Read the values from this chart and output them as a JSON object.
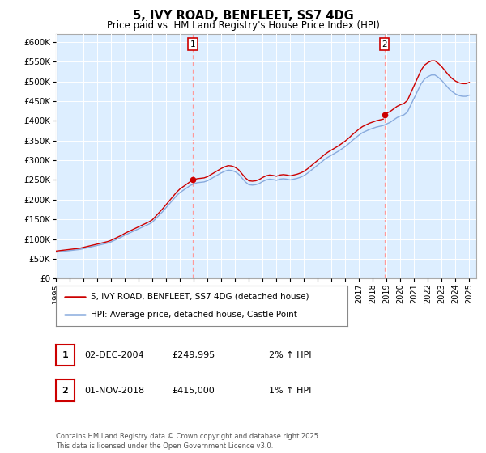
{
  "title": "5, IVY ROAD, BENFLEET, SS7 4DG",
  "subtitle": "Price paid vs. HM Land Registry's House Price Index (HPI)",
  "legend_line1": "5, IVY ROAD, BENFLEET, SS7 4DG (detached house)",
  "legend_line2": "HPI: Average price, detached house, Castle Point",
  "footer": "Contains HM Land Registry data © Crown copyright and database right 2025.\nThis data is licensed under the Open Government Licence v3.0.",
  "marker1_date": "02-DEC-2004",
  "marker1_price": "£249,995",
  "marker1_hpi": "2% ↑ HPI",
  "marker2_date": "01-NOV-2018",
  "marker2_price": "£415,000",
  "marker2_hpi": "1% ↑ HPI",
  "ylim": [
    0,
    620000
  ],
  "yticks": [
    0,
    50000,
    100000,
    150000,
    200000,
    250000,
    300000,
    350000,
    400000,
    450000,
    500000,
    550000,
    600000
  ],
  "red_line_color": "#cc0000",
  "blue_line_color": "#88aadd",
  "vline_color": "#ff9999",
  "background_color": "#ffffff",
  "plot_bg_color": "#ddeeff",
  "grid_color": "#ffffff",
  "marker1_x_year": 2004.92,
  "marker2_x_year": 2018.83,
  "hpi_years": [
    1995.0,
    1995.25,
    1995.5,
    1995.75,
    1996.0,
    1996.25,
    1996.5,
    1996.75,
    1997.0,
    1997.25,
    1997.5,
    1997.75,
    1998.0,
    1998.25,
    1998.5,
    1998.75,
    1999.0,
    1999.25,
    1999.5,
    1999.75,
    2000.0,
    2000.25,
    2000.5,
    2000.75,
    2001.0,
    2001.25,
    2001.5,
    2001.75,
    2002.0,
    2002.25,
    2002.5,
    2002.75,
    2003.0,
    2003.25,
    2003.5,
    2003.75,
    2004.0,
    2004.25,
    2004.5,
    2004.75,
    2005.0,
    2005.25,
    2005.5,
    2005.75,
    2006.0,
    2006.25,
    2006.5,
    2006.75,
    2007.0,
    2007.25,
    2007.5,
    2007.75,
    2008.0,
    2008.25,
    2008.5,
    2008.75,
    2009.0,
    2009.25,
    2009.5,
    2009.75,
    2010.0,
    2010.25,
    2010.5,
    2010.75,
    2011.0,
    2011.25,
    2011.5,
    2011.75,
    2012.0,
    2012.25,
    2012.5,
    2012.75,
    2013.0,
    2013.25,
    2013.5,
    2013.75,
    2014.0,
    2014.25,
    2014.5,
    2014.75,
    2015.0,
    2015.25,
    2015.5,
    2015.75,
    2016.0,
    2016.25,
    2016.5,
    2016.75,
    2017.0,
    2017.25,
    2017.5,
    2017.75,
    2018.0,
    2018.25,
    2018.5,
    2018.75,
    2019.0,
    2019.25,
    2019.5,
    2019.75,
    2020.0,
    2020.25,
    2020.5,
    2020.75,
    2021.0,
    2021.25,
    2021.5,
    2021.75,
    2022.0,
    2022.25,
    2022.5,
    2022.75,
    2023.0,
    2023.25,
    2023.5,
    2023.75,
    2024.0,
    2024.25,
    2024.5,
    2024.75,
    2025.0
  ],
  "hpi_values": [
    67000,
    68000,
    69000,
    70000,
    71000,
    72000,
    73000,
    74000,
    76000,
    78000,
    80000,
    82000,
    84000,
    86000,
    88000,
    90000,
    93000,
    97000,
    101000,
    105000,
    110000,
    114000,
    118000,
    122000,
    126000,
    130000,
    134000,
    138000,
    143000,
    152000,
    161000,
    170000,
    180000,
    190000,
    200000,
    210000,
    218000,
    224000,
    230000,
    236000,
    240000,
    243000,
    244000,
    245000,
    248000,
    253000,
    258000,
    263000,
    268000,
    272000,
    275000,
    274000,
    271000,
    265000,
    255000,
    245000,
    238000,
    237000,
    238000,
    241000,
    246000,
    250000,
    252000,
    251000,
    249000,
    252000,
    253000,
    252000,
    250000,
    252000,
    254000,
    257000,
    261000,
    267000,
    274000,
    281000,
    288000,
    295000,
    302000,
    308000,
    313000,
    318000,
    323000,
    329000,
    335000,
    342000,
    350000,
    357000,
    364000,
    370000,
    374000,
    378000,
    381000,
    384000,
    386000,
    388000,
    392000,
    396000,
    402000,
    408000,
    412000,
    415000,
    422000,
    440000,
    458000,
    476000,
    494000,
    506000,
    512000,
    516000,
    516000,
    510000,
    502000,
    492000,
    482000,
    474000,
    468000,
    464000,
    462000,
    462000,
    465000
  ],
  "price_paid_years": [
    2004.92,
    2018.83
  ],
  "price_paid_values": [
    249995,
    415000
  ],
  "xlim_start": 1995.0,
  "xlim_end": 2025.5,
  "xtick_years": [
    1995,
    1996,
    1997,
    1998,
    1999,
    2000,
    2001,
    2002,
    2003,
    2004,
    2005,
    2006,
    2007,
    2008,
    2009,
    2010,
    2011,
    2012,
    2013,
    2014,
    2015,
    2016,
    2017,
    2018,
    2019,
    2020,
    2021,
    2022,
    2023,
    2024,
    2025
  ]
}
